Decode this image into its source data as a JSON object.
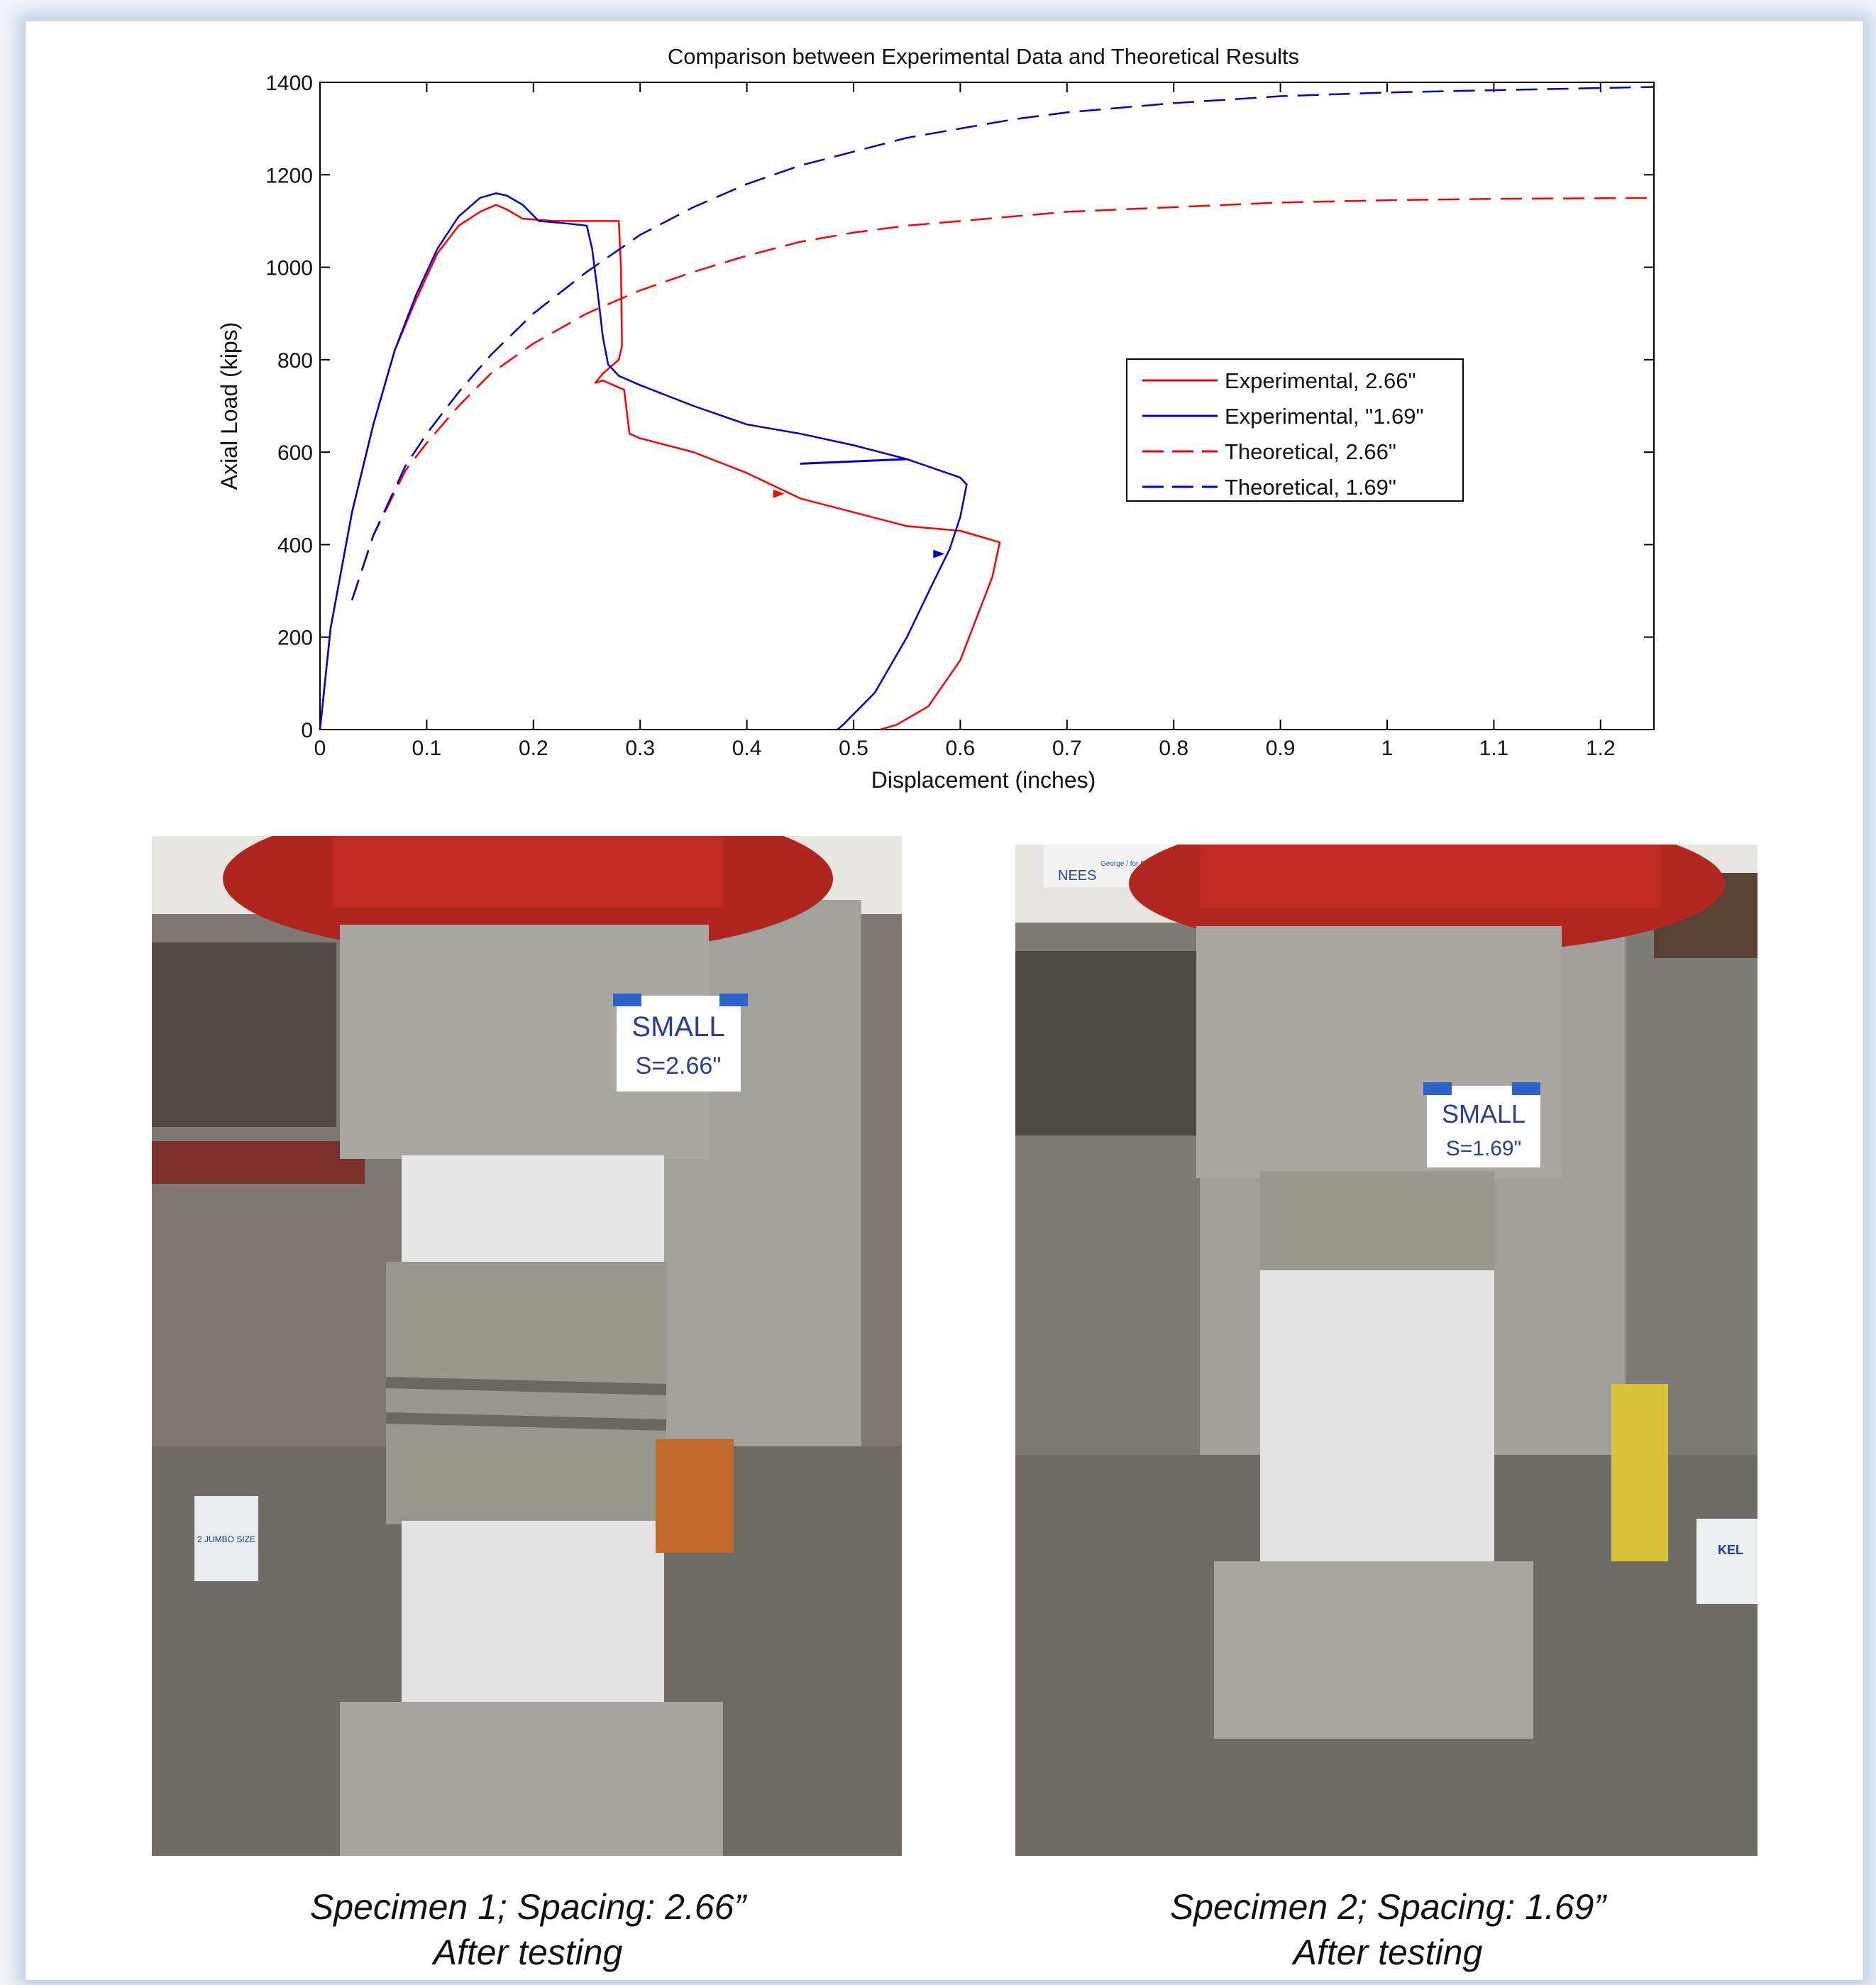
{
  "chart_data": {
    "type": "line",
    "title": "Comparison between Experimental Data and Theoretical Results",
    "xlabel": "Displacement (inches)",
    "ylabel": "Axial Load (kips)",
    "xlim": [
      0,
      1.25
    ],
    "ylim": [
      0,
      1400
    ],
    "xticks": [
      "0",
      "0.1",
      "0.2",
      "0.3",
      "0.4",
      "0.5",
      "0.6",
      "0.7",
      "0.8",
      "0.9",
      "1",
      "1.1",
      "1.2"
    ],
    "yticks": [
      "0",
      "200",
      "400",
      "600",
      "800",
      "1000",
      "1200",
      "1400"
    ],
    "grid": false,
    "legend_position": "right-center",
    "series": [
      {
        "name": "Experimental, 2.66\"",
        "color": "#ff0000",
        "style": "solid",
        "x": [
          0,
          0.01,
          0.03,
          0.05,
          0.07,
          0.09,
          0.11,
          0.13,
          0.15,
          0.165,
          0.175,
          0.19,
          0.22,
          0.27,
          0.28,
          0.282,
          0.283,
          0.28,
          0.265,
          0.258,
          0.265,
          0.275,
          0.285,
          0.29,
          0.3,
          0.35,
          0.4,
          0.45,
          0.5,
          0.55,
          0.6,
          0.637,
          0.63,
          0.6,
          0.57,
          0.54,
          0.525
        ],
        "y": [
          0,
          220,
          470,
          660,
          820,
          930,
          1030,
          1090,
          1120,
          1135,
          1125,
          1105,
          1100,
          1100,
          1100,
          1000,
          830,
          800,
          770,
          750,
          755,
          745,
          735,
          640,
          630,
          600,
          555,
          500,
          470,
          440,
          430,
          405,
          330,
          150,
          50,
          10,
          0
        ],
        "markers": [
          {
            "x": 0.43,
            "y": 510
          }
        ]
      },
      {
        "name": "Experimental, \"1.69\"",
        "color": "#0000cc",
        "style": "solid",
        "x": [
          0,
          0.01,
          0.03,
          0.05,
          0.07,
          0.09,
          0.11,
          0.13,
          0.15,
          0.165,
          0.175,
          0.19,
          0.205,
          0.23,
          0.25,
          0.255,
          0.26,
          0.265,
          0.27,
          0.28,
          0.3,
          0.35,
          0.4,
          0.45,
          0.5,
          0.55,
          0.6,
          0.606,
          0.6,
          0.59,
          0.575,
          0.55,
          0.52,
          0.49,
          0.485
        ],
        "y": [
          0,
          220,
          470,
          660,
          820,
          940,
          1040,
          1110,
          1150,
          1160,
          1155,
          1135,
          1100,
          1095,
          1090,
          1040,
          950,
          850,
          790,
          765,
          745,
          700,
          660,
          640,
          615,
          585,
          545,
          530,
          460,
          390,
          320,
          200,
          80,
          10,
          0
        ],
        "markers": [
          {
            "x": 0.58,
            "y": 380
          }
        ],
        "extra_segment": {
          "x": [
            0.45,
            0.55
          ],
          "y": [
            575,
            585
          ]
        }
      },
      {
        "name": "Theoretical, 2.66\"",
        "color": "#ff0000",
        "style": "dashed",
        "x": [
          0.03,
          0.05,
          0.08,
          0.1,
          0.13,
          0.16,
          0.2,
          0.25,
          0.3,
          0.35,
          0.4,
          0.45,
          0.5,
          0.55,
          0.6,
          0.65,
          0.7,
          0.8,
          0.9,
          1.0,
          1.1,
          1.25
        ],
        "y": [
          280,
          420,
          560,
          620,
          700,
          770,
          835,
          900,
          950,
          990,
          1025,
          1055,
          1075,
          1090,
          1100,
          1110,
          1120,
          1130,
          1140,
          1145,
          1148,
          1150
        ]
      },
      {
        "name": "Theoretical, 1.69\"",
        "color": "#0000cc",
        "style": "dashed",
        "x": [
          0.03,
          0.05,
          0.08,
          0.1,
          0.13,
          0.16,
          0.2,
          0.25,
          0.3,
          0.35,
          0.4,
          0.45,
          0.5,
          0.55,
          0.6,
          0.65,
          0.7,
          0.8,
          0.9,
          1.0,
          1.1,
          1.25
        ],
        "y": [
          280,
          420,
          570,
          640,
          730,
          810,
          900,
          990,
          1070,
          1130,
          1180,
          1220,
          1250,
          1280,
          1300,
          1320,
          1335,
          1355,
          1370,
          1378,
          1383,
          1390
        ]
      }
    ]
  },
  "photos": [
    {
      "label_line1": "SMALL",
      "label_line2": "S=2.66\"",
      "caption_line1": "Specimen 1; Spacing: 2.66”",
      "caption_line2": "After testing",
      "bucket_text": "2 JUMBO SIZE"
    },
    {
      "label_line1": "SMALL",
      "label_line2": "S=1.69\"",
      "caption_line1": "Specimen 2; Spacing: 1.69”",
      "caption_line2": "After testing",
      "sign_text": "NEES",
      "sign_sub": "George / for Earthqua",
      "bucket_text": "KEL"
    }
  ],
  "colors": {
    "experimental_266": "#ff0000",
    "experimental_169": "#0000cc",
    "panel_glow": "#bcd0e6"
  }
}
